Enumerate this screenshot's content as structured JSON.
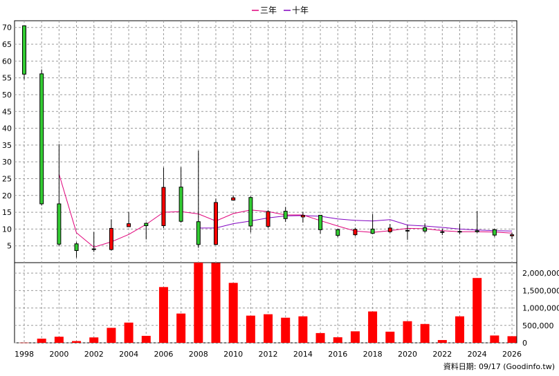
{
  "chart_data": {
    "type": "candlestick+volume",
    "legend": [
      {
        "name": "三年",
        "color": "#e0007a"
      },
      {
        "name": "十年",
        "color": "#8000c0"
      }
    ],
    "price_axis": {
      "ylim": [
        0,
        72
      ],
      "ticks": [
        5,
        10,
        15,
        20,
        25,
        30,
        35,
        40,
        45,
        50,
        55,
        60,
        65,
        70
      ]
    },
    "volume_axis": {
      "ylim": [
        0,
        2300000
      ],
      "ticks": [
        0,
        500000,
        1000000,
        1500000,
        2000000
      ],
      "tick_labels": [
        "0",
        "500,000",
        "1,000,000",
        "1,500,000",
        "2,000,000"
      ]
    },
    "x_tick_labels": [
      "1998",
      "2000",
      "2002",
      "2004",
      "2006",
      "2008",
      "2010",
      "2012",
      "2014",
      "2016",
      "2018",
      "2020",
      "2022",
      "2024",
      "2026"
    ],
    "years": [
      1998,
      1999,
      2000,
      2001,
      2002,
      2003,
      2004,
      2005,
      2006,
      2007,
      2008,
      2009,
      2010,
      2011,
      2012,
      2013,
      2014,
      2015,
      2016,
      2017,
      2018,
      2019,
      2020,
      2021,
      2022,
      2023,
      2024,
      2025,
      2026
    ],
    "candles": [
      {
        "o": 56.1,
        "h": 70.5,
        "l": 54.5,
        "c": 70.5
      },
      {
        "o": 17.5,
        "h": 57.5,
        "l": 17.0,
        "c": 56.2
      },
      {
        "o": 5.5,
        "h": 35.3,
        "l": 5.0,
        "c": 17.5
      },
      {
        "o": 3.6,
        "h": 6.1,
        "l": 1.5,
        "c": 5.6
      },
      {
        "o": 4.1,
        "h": 9.2,
        "l": 3.2,
        "c": 4.0
      },
      {
        "o": 10.2,
        "h": 12.9,
        "l": 3.6,
        "c": 3.9
      },
      {
        "o": 11.6,
        "h": 15.1,
        "l": 10.7,
        "c": 10.7
      },
      {
        "o": 11.0,
        "h": 12.0,
        "l": 6.9,
        "c": 11.7
      },
      {
        "o": 22.4,
        "h": 28.3,
        "l": 10.3,
        "c": 11.0
      },
      {
        "o": 12.3,
        "h": 28.4,
        "l": 11.9,
        "c": 22.5
      },
      {
        "o": 5.4,
        "h": 33.3,
        "l": 4.4,
        "c": 12.2
      },
      {
        "o": 17.9,
        "h": 19.1,
        "l": 5.2,
        "c": 5.4
      },
      {
        "o": 19.3,
        "h": 20.0,
        "l": 18.6,
        "c": 18.6
      },
      {
        "o": 10.9,
        "h": 19.7,
        "l": 9.0,
        "c": 19.4
      },
      {
        "o": 15.2,
        "h": 15.6,
        "l": 10.3,
        "c": 10.8
      },
      {
        "o": 13.1,
        "h": 16.6,
        "l": 12.1,
        "c": 15.3
      },
      {
        "o": 14.1,
        "h": 15.1,
        "l": 11.9,
        "c": 13.6
      },
      {
        "o": 9.8,
        "h": 14.1,
        "l": 8.6,
        "c": 14.1
      },
      {
        "o": 8.1,
        "h": 10.1,
        "l": 7.6,
        "c": 9.8
      },
      {
        "o": 9.9,
        "h": 10.4,
        "l": 7.9,
        "c": 8.3
      },
      {
        "o": 8.7,
        "h": 14.5,
        "l": 8.5,
        "c": 10.0
      },
      {
        "o": 10.3,
        "h": 11.5,
        "l": 8.9,
        "c": 9.2
      },
      {
        "o": 9.6,
        "h": 11.1,
        "l": 6.8,
        "c": 9.6
      },
      {
        "o": 9.4,
        "h": 11.7,
        "l": 8.9,
        "c": 10.4
      },
      {
        "o": 9.2,
        "h": 10.1,
        "l": 8.2,
        "c": 9.0
      },
      {
        "o": 9.3,
        "h": 11.6,
        "l": 8.4,
        "c": 9.2
      },
      {
        "o": 9.2,
        "h": 15.4,
        "l": 8.9,
        "c": 9.5
      },
      {
        "o": 8.2,
        "h": 10.1,
        "l": 7.7,
        "c": 9.8
      },
      {
        "o": 8.3,
        "h": 8.9,
        "l": 7.0,
        "c": 8.0
      }
    ],
    "ma3": [
      null,
      null,
      26.3,
      8.9,
      4.6,
      6.2,
      8.4,
      11.4,
      15.0,
      15.2,
      14.5,
      12.4,
      14.6,
      15.7,
      15.2,
      14.2,
      14.2,
      12.5,
      10.9,
      9.4,
      9.0,
      9.5,
      10.2,
      10.1,
      9.5,
      9.2,
      9.2,
      9.1,
      8.8
    ],
    "ma10": [
      null,
      null,
      null,
      null,
      null,
      null,
      null,
      null,
      null,
      null,
      10.3,
      10.3,
      11.6,
      12.4,
      13.3,
      13.9,
      14.0,
      13.8,
      13.0,
      12.6,
      12.4,
      12.8,
      11.2,
      10.9,
      10.5,
      10.0,
      9.7,
      9.5,
      9.4
    ],
    "volume": [
      5000,
      120000,
      175000,
      50000,
      155000,
      430000,
      580000,
      200000,
      1600000,
      840000,
      2300000,
      2290000,
      1720000,
      780000,
      820000,
      720000,
      760000,
      280000,
      160000,
      330000,
      900000,
      320000,
      620000,
      540000,
      80000,
      760000,
      1860000,
      210000,
      190000
    ],
    "footer": "資料日期: 09/17  (Goodinfo.tw)"
  }
}
